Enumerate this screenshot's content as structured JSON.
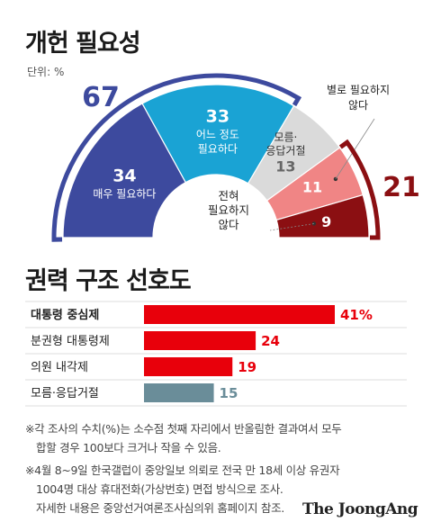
{
  "title_necessity": "개헌 필요성",
  "unit_label": "단위: %",
  "title_structure": "권력 구조 선호도",
  "notes": {
    "note1_line1": "※각 조사의 수치(%)는 소수점 첫째 자리에서 반올림한 결과여서 모두",
    "note1_line2": "합할 경우 100보다 크거나 작을 수 있음.",
    "note2_line1": "※4월 8~9일 한국갤럽이 중앙일보 의뢰로 전국 만 18세 이상 유권자",
    "note2_line2": "1004명 대상 휴대전화(가상번호) 면접 방식으로 조사.",
    "note2_line3": "자세한 내용은 중앙선거여론조사심의위 홈페이지 참조."
  },
  "logo": "The JoongAng",
  "chart_data": [
    {
      "type": "pie",
      "shape": "semicircle donut",
      "slices": [
        {
          "label_lines": [
            "매우 필요하다"
          ],
          "value": 34,
          "color": "#3d4a9e",
          "text_color": "#ffffff"
        },
        {
          "label_lines": [
            "어느 정도",
            "필요하다"
          ],
          "value": 33,
          "color": "#1aa3d4",
          "text_color": "#ffffff"
        },
        {
          "label_lines": [
            "모름·",
            "응답거절"
          ],
          "value": 13,
          "color": "#dadada",
          "text_color": "#333333"
        },
        {
          "label_lines": [],
          "value": 11,
          "color": "#f08585",
          "text_color": "#ffffff"
        },
        {
          "label_lines": [],
          "value": 9,
          "color": "#8b0f12",
          "text_color": "#ffffff"
        }
      ],
      "callouts": [
        {
          "lines": [
            "별로 필요하지",
            "않다"
          ],
          "slice": 3
        },
        {
          "lines": [
            "전혀",
            "필요하지",
            "않다"
          ],
          "slice": 4
        }
      ],
      "groups": [
        {
          "value": 67,
          "slices": [
            0,
            1
          ],
          "color": "#3d4a9e"
        },
        {
          "value": 21,
          "slices": [
            3,
            4
          ],
          "color": "#8b0f12"
        }
      ]
    },
    {
      "type": "bar",
      "orientation": "horizontal",
      "categories": [
        "대통령 중심제",
        "분권형 대통령제",
        "의원 내각제",
        "모름·응답거절"
      ],
      "values": [
        41,
        24,
        19,
        15
      ],
      "value_labels": [
        "41%",
        "24",
        "19",
        "15"
      ],
      "colors": [
        "#e8000b",
        "#e8000b",
        "#e8000b",
        "#6a8d99"
      ],
      "label_colors": [
        "#e8000b",
        "#e8000b",
        "#e8000b",
        "#6a8d99"
      ],
      "bold_category": 0,
      "xlim": [
        0,
        41
      ]
    }
  ]
}
